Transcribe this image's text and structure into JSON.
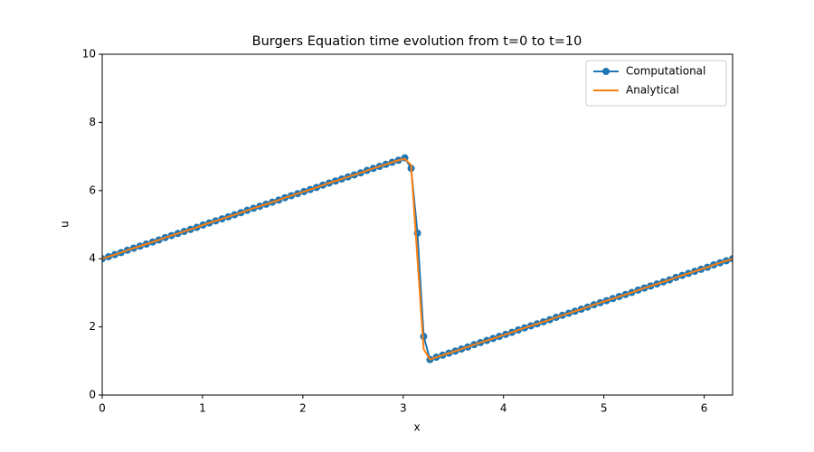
{
  "chart_data": {
    "type": "line",
    "title": "Burgers Equation time evolution from t=0 to t=10",
    "xlabel": "x",
    "ylabel": "u",
    "x": [
      0,
      0.063,
      0.126,
      0.188,
      0.251,
      0.314,
      0.377,
      0.44,
      0.503,
      0.565,
      0.628,
      0.691,
      0.754,
      0.817,
      0.88,
      0.942,
      1.005,
      1.068,
      1.131,
      1.194,
      1.257,
      1.319,
      1.382,
      1.445,
      1.508,
      1.571,
      1.634,
      1.696,
      1.759,
      1.822,
      1.885,
      1.948,
      2.011,
      2.073,
      2.136,
      2.199,
      2.262,
      2.325,
      2.388,
      2.45,
      2.513,
      2.576,
      2.639,
      2.702,
      2.765,
      2.827,
      2.89,
      2.953,
      3.016,
      3.079,
      3.142,
      3.204,
      3.267,
      3.33,
      3.393,
      3.456,
      3.519,
      3.581,
      3.644,
      3.707,
      3.77,
      3.833,
      3.896,
      3.958,
      4.021,
      4.084,
      4.147,
      4.21,
      4.273,
      4.335,
      4.398,
      4.461,
      4.524,
      4.587,
      4.65,
      4.712,
      4.775,
      4.838,
      4.901,
      4.964,
      5.027,
      5.089,
      5.152,
      5.215,
      5.278,
      5.341,
      5.404,
      5.466,
      5.529,
      5.592,
      5.655,
      5.718,
      5.781,
      5.843,
      5.906,
      5.969,
      6.032,
      6.095,
      6.158,
      6.22,
      6.283
    ],
    "series": [
      {
        "name": "Computational",
        "color": "#1f77b4",
        "marker": true,
        "values": [
          4.0,
          4.06,
          4.12,
          4.18,
          4.25,
          4.31,
          4.37,
          4.43,
          4.49,
          4.55,
          4.62,
          4.68,
          4.74,
          4.8,
          4.86,
          4.92,
          4.99,
          5.05,
          5.11,
          5.17,
          5.23,
          5.29,
          5.35,
          5.42,
          5.48,
          5.54,
          5.6,
          5.66,
          5.72,
          5.79,
          5.85,
          5.91,
          5.97,
          6.03,
          6.09,
          6.16,
          6.22,
          6.28,
          6.34,
          6.4,
          6.46,
          6.52,
          6.59,
          6.65,
          6.71,
          6.77,
          6.83,
          6.89,
          6.96,
          6.65,
          4.75,
          1.72,
          1.04,
          1.11,
          1.17,
          1.23,
          1.29,
          1.35,
          1.41,
          1.48,
          1.54,
          1.6,
          1.66,
          1.72,
          1.78,
          1.84,
          1.91,
          1.97,
          2.03,
          2.09,
          2.15,
          2.21,
          2.28,
          2.34,
          2.4,
          2.46,
          2.52,
          2.58,
          2.65,
          2.71,
          2.77,
          2.83,
          2.89,
          2.95,
          3.01,
          3.08,
          3.14,
          3.2,
          3.26,
          3.32,
          3.38,
          3.45,
          3.51,
          3.57,
          3.63,
          3.69,
          3.75,
          3.82,
          3.88,
          3.94,
          4.0
        ]
      },
      {
        "name": "Analytical",
        "color": "#ff7f0e",
        "marker": false,
        "values": [
          4.0,
          4.06,
          4.12,
          4.18,
          4.25,
          4.31,
          4.37,
          4.43,
          4.49,
          4.55,
          4.62,
          4.68,
          4.74,
          4.8,
          4.86,
          4.92,
          4.99,
          5.05,
          5.11,
          5.17,
          5.23,
          5.29,
          5.35,
          5.42,
          5.48,
          5.54,
          5.6,
          5.66,
          5.72,
          5.79,
          5.85,
          5.91,
          5.97,
          6.03,
          6.09,
          6.16,
          6.22,
          6.28,
          6.34,
          6.4,
          6.46,
          6.52,
          6.59,
          6.65,
          6.71,
          6.77,
          6.83,
          6.89,
          6.93,
          6.75,
          4.0,
          1.35,
          1.04,
          1.11,
          1.17,
          1.23,
          1.29,
          1.35,
          1.41,
          1.48,
          1.54,
          1.6,
          1.66,
          1.72,
          1.78,
          1.84,
          1.91,
          1.97,
          2.03,
          2.09,
          2.15,
          2.21,
          2.28,
          2.34,
          2.4,
          2.46,
          2.52,
          2.58,
          2.65,
          2.71,
          2.77,
          2.83,
          2.89,
          2.95,
          3.01,
          3.08,
          3.14,
          3.2,
          3.26,
          3.32,
          3.38,
          3.45,
          3.51,
          3.57,
          3.63,
          3.69,
          3.75,
          3.82,
          3.88,
          3.94,
          4.0
        ]
      }
    ],
    "xlim": [
      0,
      6.283
    ],
    "ylim": [
      0,
      10
    ],
    "xticks": [
      0,
      1,
      2,
      3,
      4,
      5,
      6
    ],
    "yticks": [
      0,
      2,
      4,
      6,
      8,
      10
    ],
    "legend": "upper right"
  }
}
